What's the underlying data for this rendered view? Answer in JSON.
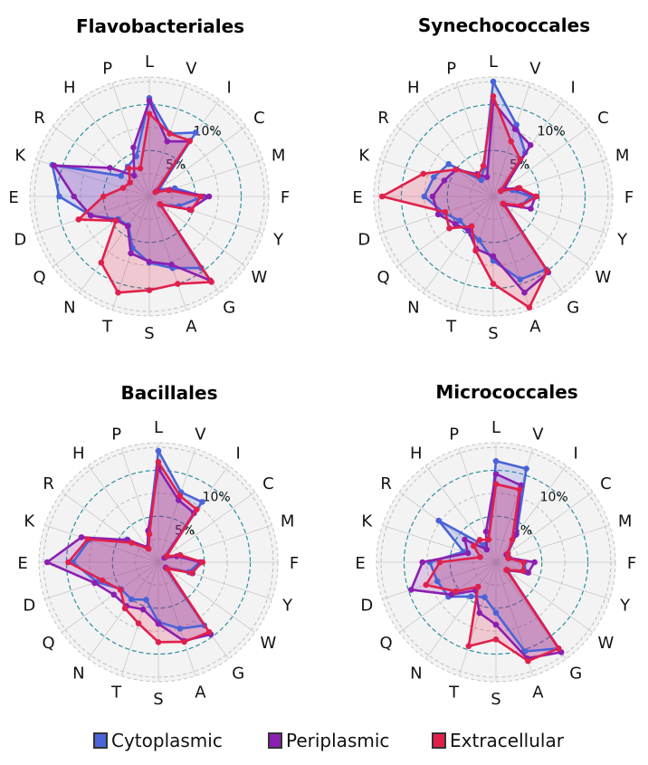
{
  "chart_data": [
    {
      "type": "radar",
      "title": "Flavobacteriales",
      "axes": [
        "L",
        "V",
        "I",
        "C",
        "M",
        "F",
        "Y",
        "W",
        "G",
        "A",
        "S",
        "T",
        "N",
        "Q",
        "D",
        "E",
        "K",
        "R",
        "H",
        "P"
      ],
      "ring_labels": [
        "5%",
        "10%"
      ],
      "series": [
        {
          "name": "Cytoplasmic",
          "values": [
            10.7,
            7.2,
            8.6,
            1.3,
            2.9,
            5.9,
            3.4,
            1.5,
            9.6,
            8.2,
            7.2,
            5.9,
            3.9,
            4.2,
            6.7,
            9.8,
            11.1,
            3.8,
            4.0,
            4.6
          ]
        },
        {
          "name": "Periplasmic",
          "values": [
            10.4,
            6.3,
            7.4,
            1.0,
            2.3,
            6.5,
            4.6,
            1.5,
            11.3,
            7.8,
            7.1,
            6.5,
            4.0,
            4.4,
            6.7,
            8.2,
            10.9,
            5.3,
            2.8,
            5.6
          ]
        },
        {
          "name": "Extracellular",
          "values": [
            9.0,
            7.2,
            7.5,
            0.8,
            2.2,
            5.6,
            4.8,
            1.4,
            11.5,
            10.0,
            10.2,
            11.0,
            8.9,
            4.5,
            8.1,
            5.0,
            3.0,
            2.6,
            3.8,
            3.2
          ]
        }
      ]
    },
    {
      "type": "radar",
      "title": "Synechococcales",
      "axes": [
        "L",
        "V",
        "I",
        "C",
        "M",
        "F",
        "Y",
        "W",
        "G",
        "A",
        "S",
        "T",
        "N",
        "Q",
        "D",
        "E",
        "K",
        "R",
        "H",
        "P"
      ],
      "ring_labels": [
        "5%",
        "10%"
      ],
      "series": [
        {
          "name": "Cytoplasmic",
          "values": [
            12.5,
            8.2,
            5.9,
            1.5,
            2.2,
            4.1,
            3.2,
            1.5,
            9.8,
            9.5,
            7.0,
            5.0,
            4.5,
            4.5,
            5.7,
            7.5,
            6.8,
            6.0,
            2.2,
            3.3
          ]
        },
        {
          "name": "Periplasmic",
          "values": [
            10.3,
            7.7,
            6.9,
            1.4,
            2.8,
            4.6,
            4.3,
            1.5,
            10.2,
            11.0,
            6.5,
            6.0,
            4.6,
            5.1,
            6.3,
            6.6,
            5.6,
            5.0,
            3.0,
            2.2
          ]
        },
        {
          "name": "Extracellular",
          "values": [
            10.9,
            6.3,
            5.0,
            1.0,
            3.0,
            4.7,
            3.2,
            1.3,
            10.0,
            12.7,
            9.5,
            6.2,
            4.0,
            5.9,
            5.5,
            12.1,
            8.0,
            5.0,
            2.8,
            3.5
          ]
        }
      ]
    },
    {
      "type": "radar",
      "title": "Bacillales",
      "axes": [
        "L",
        "V",
        "I",
        "C",
        "M",
        "F",
        "Y",
        "W",
        "G",
        "A",
        "S",
        "T",
        "N",
        "Q",
        "D",
        "E",
        "K",
        "R",
        "H",
        "P"
      ],
      "ring_labels": [
        "5%",
        "10%"
      ],
      "series": [
        {
          "name": "Cytoplasmic",
          "values": [
            12.1,
            8.0,
            8.1,
            1.0,
            2.5,
            4.5,
            3.5,
            1.0,
            8.5,
            7.6,
            6.5,
            4.3,
            5.0,
            5.0,
            7.0,
            9.3,
            7.9,
            4.2,
            1.9,
            3.4
          ]
        },
        {
          "name": "Periplasmic",
          "values": [
            10.2,
            7.1,
            6.6,
            0.8,
            2.1,
            4.6,
            3.9,
            1.0,
            9.7,
            9.0,
            6.7,
            5.4,
            5.9,
            6.0,
            7.3,
            12.1,
            8.8,
            4.1,
            2.0,
            3.6
          ]
        },
        {
          "name": "Extracellular",
          "values": [
            10.9,
            7.6,
            7.1,
            1.1,
            2.5,
            4.8,
            3.8,
            1.2,
            9.4,
            9.1,
            8.7,
            7.0,
            6.2,
            5.1,
            6.4,
            9.8,
            8.1,
            3.6,
            1.8,
            3.2
          ]
        }
      ]
    },
    {
      "type": "radar",
      "title": "Micrococcales",
      "axes": [
        "L",
        "V",
        "I",
        "C",
        "M",
        "F",
        "Y",
        "W",
        "G",
        "A",
        "S",
        "T",
        "N",
        "Q",
        "D",
        "E",
        "K",
        "R",
        "H",
        "P"
      ],
      "ring_labels": [
        "5%",
        "10%"
      ],
      "series": [
        {
          "name": "Cytoplasmic",
          "values": [
            11.0,
            10.7,
            3.8,
            1.6,
            1.5,
            3.1,
            3.4,
            1.5,
            11.6,
            10.2,
            5.5,
            4.0,
            4.6,
            6.4,
            6.7,
            7.2,
            3.7,
            7.7,
            2.3,
            2.6
          ]
        },
        {
          "name": "Periplasmic",
          "values": [
            9.6,
            8.8,
            3.7,
            1.4,
            1.5,
            4.2,
            3.7,
            1.5,
            12.1,
            11.0,
            6.8,
            5.8,
            3.8,
            6.0,
            9.7,
            8.0,
            3.2,
            4.2,
            1.7,
            3.5
          ]
        },
        {
          "name": "Extracellular",
          "values": [
            8.5,
            8.3,
            3.0,
            1.6,
            1.4,
            3.0,
            3.1,
            1.4,
            11.6,
            11.3,
            8.4,
            9.6,
            3.3,
            5.4,
            8.0,
            6.1,
            1.8,
            3.0,
            3.0,
            2.6
          ]
        }
      ]
    }
  ],
  "legend": {
    "position": "bottom",
    "items": [
      {
        "label": "Cytoplasmic",
        "color": "#4a63d8"
      },
      {
        "label": "Periplasmic",
        "color": "#8b1fb0"
      },
      {
        "label": "Extracellular",
        "color": "#e0204c"
      }
    ]
  },
  "colors": {
    "cytoplasmic": "#4a63d8",
    "periplasmic": "#8b1fb0",
    "extracellular": "#e0204c",
    "ring_5_10": "#2a8f9f",
    "background": "#f4f3f3"
  }
}
